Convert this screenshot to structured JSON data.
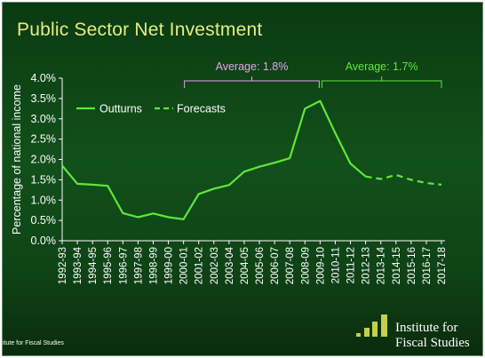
{
  "title": "Public Sector Net Investment",
  "footer_text": "itute for Fiscal Studies",
  "logo": {
    "line1": "Institute for",
    "line2": "Fiscal Studies",
    "color": "#c5cf4a"
  },
  "colors": {
    "line": "#5fe83a",
    "title": "#e6ec82",
    "text": "#ffffff",
    "bracket1": "#e8a0f0",
    "bracket2": "#5fe83a"
  },
  "chart_data": {
    "type": "line",
    "title": "Public Sector Net Investment",
    "xlabel": "",
    "ylabel": "Percentage of national income",
    "ylim": [
      0,
      4
    ],
    "yticks": [
      "0.0%",
      "0.5%",
      "1.0%",
      "1.5%",
      "2.0%",
      "2.5%",
      "3.0%",
      "3.5%",
      "4.0%"
    ],
    "grid": false,
    "legend": "top-left",
    "categories": [
      "1992-93",
      "1993-94",
      "1994-95",
      "1995-96",
      "1996-97",
      "1997-98",
      "1998-99",
      "1999-00",
      "2000-01",
      "2001-02",
      "2002-03",
      "2003-04",
      "2004-05",
      "2005-06",
      "2006-07",
      "2007-08",
      "2008-09",
      "2009-10",
      "2010-11",
      "2011-12",
      "2012-13",
      "2013-14",
      "2014-15",
      "2015-16",
      "2016-17",
      "2017-18"
    ],
    "series": [
      {
        "name": "Outturns",
        "style": "solid",
        "values": [
          1.85,
          1.4,
          1.38,
          1.35,
          0.68,
          0.58,
          0.67,
          0.58,
          0.53,
          1.15,
          1.28,
          1.37,
          1.7,
          1.82,
          1.92,
          2.03,
          3.25,
          3.44,
          2.65,
          1.9,
          1.58,
          null,
          null,
          null,
          null,
          null
        ]
      },
      {
        "name": "Forecasts",
        "style": "dashed",
        "values": [
          null,
          null,
          null,
          null,
          null,
          null,
          null,
          null,
          null,
          null,
          null,
          null,
          null,
          null,
          null,
          null,
          null,
          null,
          null,
          null,
          1.58,
          1.52,
          1.62,
          1.5,
          1.42,
          1.38
        ]
      }
    ],
    "annotations": [
      {
        "label": "Average: 1.8%",
        "from": "2000-01",
        "to": "2009-10",
        "color": "#e8a0f0"
      },
      {
        "label": "Average: 1.7%",
        "from": "2009-10",
        "to": "2017-18",
        "color": "#5fe83a"
      }
    ]
  }
}
